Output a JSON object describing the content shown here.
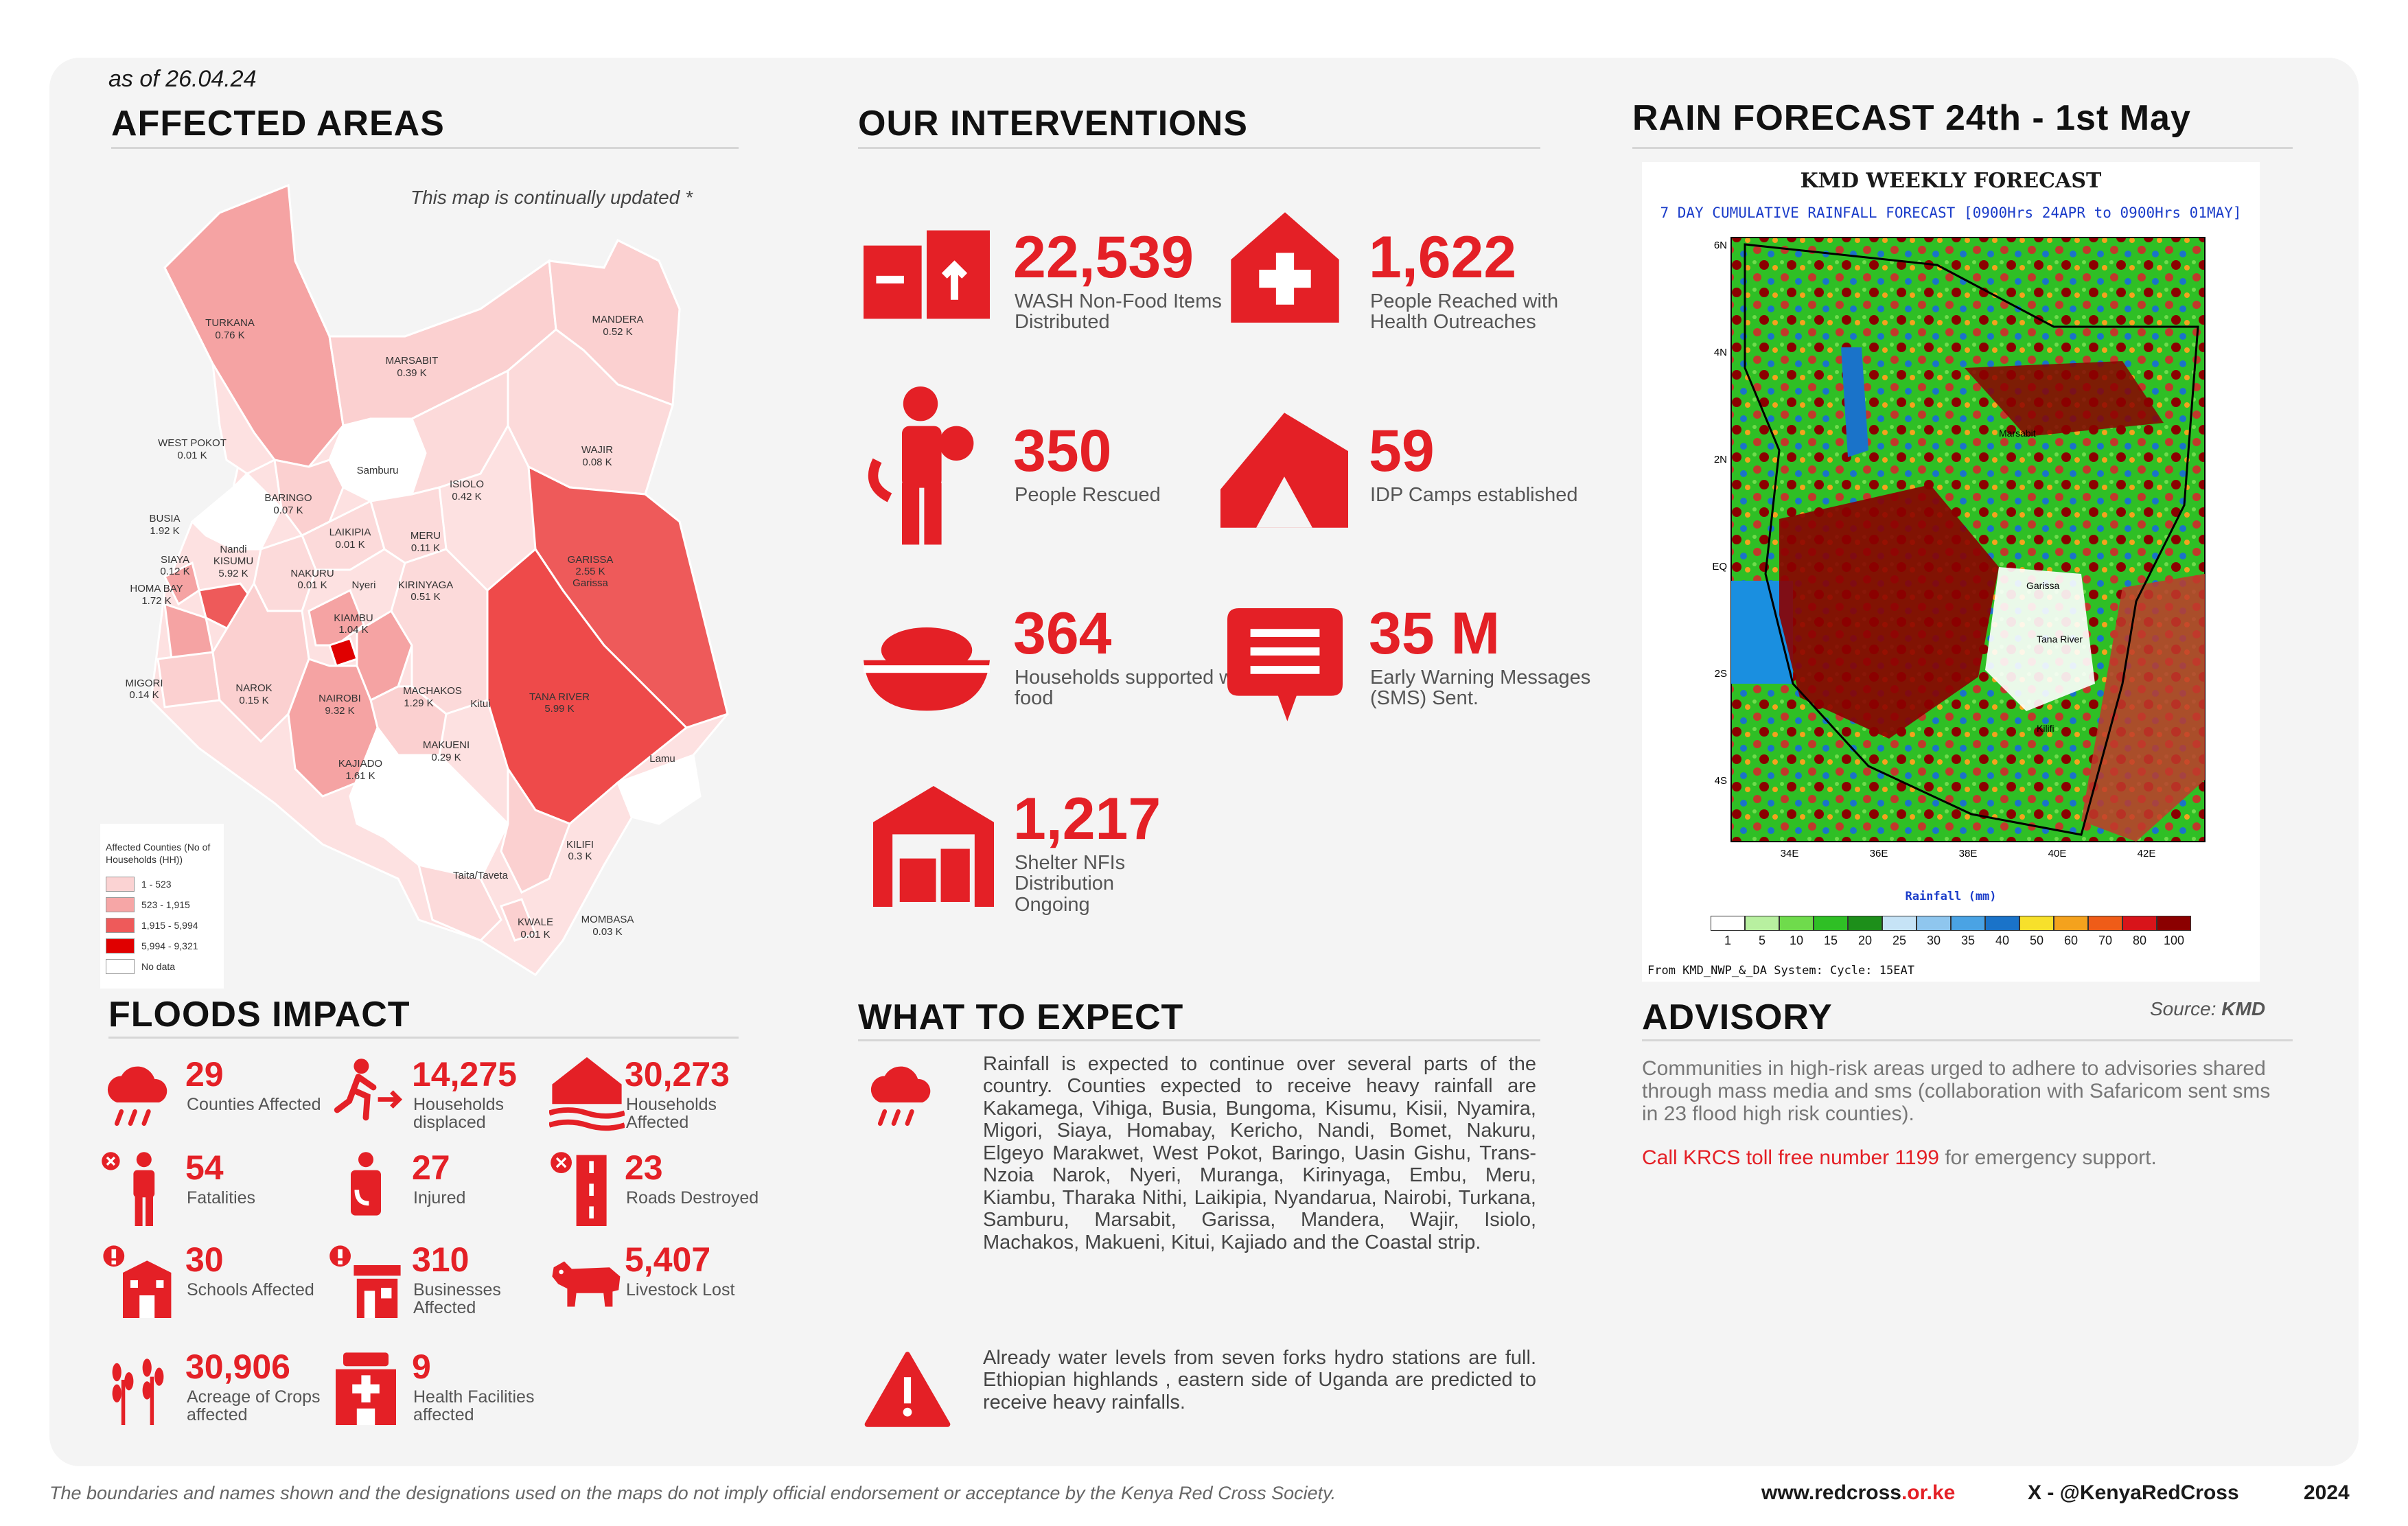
{
  "header": {
    "date": "as of 26.04.24"
  },
  "affected": {
    "title": "AFFECTED AREAS",
    "note": "This map is continually updated *",
    "legend": {
      "title": "Affected Counties (No of Households (HH))",
      "items": [
        {
          "label": "1 - 523",
          "color": "#fbd3d3"
        },
        {
          "label": "523 - 1,915",
          "color": "#f6a6a6"
        },
        {
          "label": "1,915 - 5,994",
          "color": "#ee5a5a"
        },
        {
          "label": "5,994 - 9,321",
          "color": "#e00000"
        },
        {
          "label": "No data",
          "color": "#ffffff"
        }
      ]
    },
    "counties": [
      {
        "name": "TURKANA",
        "value": "0.76 K"
      },
      {
        "name": "MARSABIT",
        "value": "0.39 K"
      },
      {
        "name": "MANDERA",
        "value": "0.52 K"
      },
      {
        "name": "WEST POKOT",
        "value": "0.01 K"
      },
      {
        "name": "WAJIR",
        "value": "0.08 K"
      },
      {
        "name": "Samburu",
        "value": ""
      },
      {
        "name": "ISIOLO",
        "value": "0.42 K"
      },
      {
        "name": "BARINGO",
        "value": "0.07 K"
      },
      {
        "name": "BUSIA",
        "value": "1.92 K"
      },
      {
        "name": "LAIKIPIA",
        "value": "0.01 K"
      },
      {
        "name": "MERU",
        "value": "0.11 K"
      },
      {
        "name": "Nandi",
        "value": ""
      },
      {
        "name": "KISUMU",
        "value": "5.92 K"
      },
      {
        "name": "SIAYA",
        "value": "0.12 K"
      },
      {
        "name": "GARISSA",
        "value": "2.55 K"
      },
      {
        "name": "Garissa",
        "value": ""
      },
      {
        "name": "NAKURU",
        "value": "0.01 K"
      },
      {
        "name": "Nyeri",
        "value": ""
      },
      {
        "name": "KIRINYAGA",
        "value": "0.51 K"
      },
      {
        "name": "HOMA BAY",
        "value": "1.72 K"
      },
      {
        "name": "KIAMBU",
        "value": "1.04 K"
      },
      {
        "name": "MIGORI",
        "value": "0.14 K"
      },
      {
        "name": "NAROK",
        "value": "0.15 K"
      },
      {
        "name": "MACHAKOS",
        "value": "1.29 K"
      },
      {
        "name": "Kitui",
        "value": ""
      },
      {
        "name": "TANA RIVER",
        "value": "5.99 K"
      },
      {
        "name": "NAIROBI",
        "value": "9.32 K"
      },
      {
        "name": "MAKUENI",
        "value": "0.29 K"
      },
      {
        "name": "KAJIADO",
        "value": "1.61 K"
      },
      {
        "name": "Lamu",
        "value": ""
      },
      {
        "name": "KILIFI",
        "value": "0.3 K"
      },
      {
        "name": "Taita/Taveta",
        "value": ""
      },
      {
        "name": "KWALE",
        "value": "0.01 K"
      },
      {
        "name": "MOMBASA",
        "value": "0.03 K"
      }
    ]
  },
  "interventions": {
    "title": "OUR INTERVENTIONS",
    "items": [
      {
        "icon": "boxes-icon",
        "number": "22,539",
        "label": "WASH Non-Food Items Distributed"
      },
      {
        "icon": "health-house-icon",
        "number": "1,622",
        "label": "People Reached with Health Outreaches"
      },
      {
        "icon": "rescuer-icon",
        "number": "350",
        "label": "People Rescued"
      },
      {
        "icon": "tent-icon",
        "number": "59",
        "label": "IDP Camps established"
      },
      {
        "icon": "food-bowl-icon",
        "number": "364",
        "label": "Households supported with food"
      },
      {
        "icon": "sms-icon",
        "number": "35 M",
        "label": "Early Warning Messages (SMS) Sent."
      },
      {
        "icon": "shelter-icon",
        "number": "1,217",
        "label": "Shelter NFIs Distribution Ongoing"
      }
    ]
  },
  "forecast": {
    "title": "RAIN FORECAST 24th - 1st May",
    "map_title": "KMD WEEKLY FORECAST",
    "map_subtitle": "7 DAY CUMULATIVE RAINFALL FORECAST [0900Hrs 24APR to 0900Hrs 01MAY]",
    "lat_ticks": [
      "6N",
      "4N",
      "2N",
      "EQ",
      "2S",
      "4S"
    ],
    "lon_ticks": [
      "34E",
      "36E",
      "38E",
      "40E",
      "42E"
    ],
    "places": [
      "Marsabit",
      "Garissa",
      "Tana River",
      "Kilifi"
    ],
    "colorbar_label": "Rainfall (mm)",
    "colorbar": [
      {
        "label": "1",
        "color": "#ffffff"
      },
      {
        "label": "5",
        "color": "#b8f0a0"
      },
      {
        "label": "10",
        "color": "#6fdb4c"
      },
      {
        "label": "15",
        "color": "#2fbf25"
      },
      {
        "label": "20",
        "color": "#1d8f1a"
      },
      {
        "label": "25",
        "color": "#c6e3f6"
      },
      {
        "label": "30",
        "color": "#8fc6ee"
      },
      {
        "label": "35",
        "color": "#4aa3e4"
      },
      {
        "label": "40",
        "color": "#1a73c9"
      },
      {
        "label": "50",
        "color": "#f7e02b"
      },
      {
        "label": "60",
        "color": "#f4a21d"
      },
      {
        "label": "70",
        "color": "#ef5c18"
      },
      {
        "label": "80",
        "color": "#d8141a"
      },
      {
        "label": "100",
        "color": "#8b0000"
      }
    ],
    "from_text": "From KMD_NWP_&_DA System: Cycle: 15EAT",
    "source_prefix": "Source:",
    "source_name": "KMD"
  },
  "impact": {
    "title": "FLOODS IMPACT",
    "items": [
      {
        "icon": "rain-cloud-icon",
        "number": "29",
        "label": "Counties Affected"
      },
      {
        "icon": "running-person-icon",
        "number": "14,275",
        "label": "Households displaced"
      },
      {
        "icon": "flooded-house-icon",
        "number": "30,273",
        "label": "Households Affected"
      },
      {
        "icon": "fatality-person-icon",
        "number": "54",
        "label": "Fatalities"
      },
      {
        "icon": "injured-person-icon",
        "number": "27",
        "label": "Injured"
      },
      {
        "icon": "road-icon",
        "number": "23",
        "label": "Roads Destroyed"
      },
      {
        "icon": "school-icon",
        "number": "30",
        "label": "Schools Affected"
      },
      {
        "icon": "shop-icon",
        "number": "310",
        "label": "Businesses Affected"
      },
      {
        "icon": "cow-icon",
        "number": "5,407",
        "label": "Livestock Lost"
      },
      {
        "icon": "crops-icon",
        "number": "30,906",
        "label": "Acreage of Crops affected"
      },
      {
        "icon": "hospital-icon",
        "number": "9",
        "label": "Health Facilities affected"
      }
    ]
  },
  "expect": {
    "title": "WHAT TO EXPECT",
    "paragraph1": "Rainfall is expected to continue over several parts of the country. Counties expected to receive heavy rainfall are Kakamega, Vihiga, Busia, Bungoma, Kisumu, Kisii, Nyamira, Migori, Siaya, Homabay, Kericho, Nandi, Bomet, Nakuru, Elgeyo Marakwet, West Pokot, Baringo, Uasin Gishu, Trans-Nzoia Narok, Nyeri, Muranga, Kirinyaga, Embu, Meru, Kiambu, Tharaka Nithi, Laikipia, Nyandarua, Nairobi, Turkana, Samburu, Marsabit, Garissa, Mandera, Wajir, Isiolo, Machakos, Makueni, Kitui, Kajiado and the Coastal strip.",
    "paragraph2": "Already water levels from seven forks hydro stations are full. Ethiopian highlands , eastern side of Uganda are predicted to receive heavy rainfalls."
  },
  "advisory": {
    "title": "ADVISORY",
    "text": "Communities in high-risk areas urged to adhere to advisories shared through mass media and sms (collaboration with Safaricom sent sms in 23 flood high risk counties).",
    "call_red": "Call KRCS toll free number 1199",
    "call_rest": " for emergency support."
  },
  "footer": {
    "disclaimer": "The boundaries and names shown and the designations used on the maps do not imply official endorsement or acceptance by the Kenya Red Cross Society.",
    "web_bold": "www.redcross",
    "web_rest": ".or.ke",
    "social": "X - @KenyaRedCross",
    "year": "2024"
  }
}
